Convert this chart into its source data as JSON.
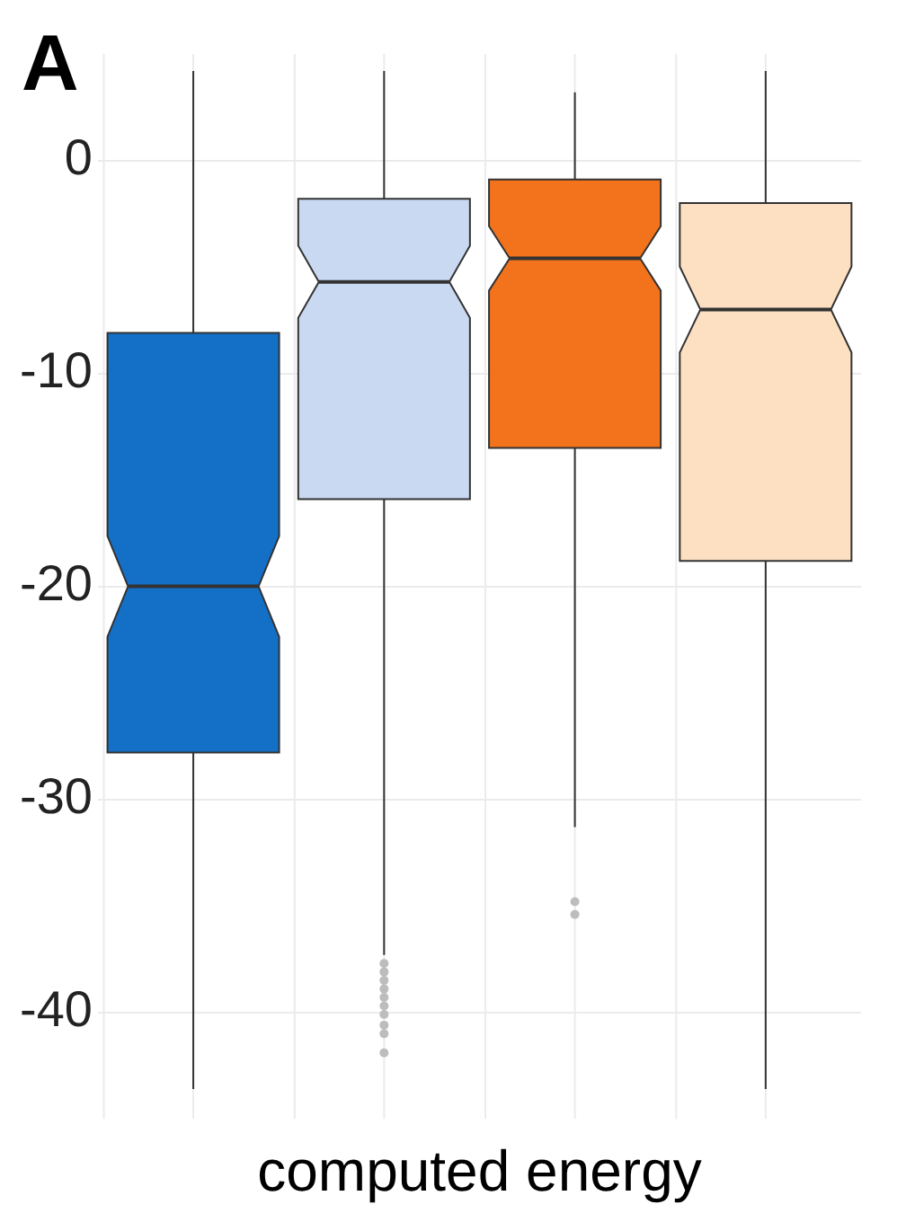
{
  "chart_data": {
    "type": "box",
    "annotations": [
      "A"
    ],
    "xlabel": "computed energy",
    "categories": [
      null,
      null,
      null,
      null
    ],
    "ylim": [
      -45,
      5
    ],
    "yticks": [
      0,
      -10,
      -20,
      -30,
      -40
    ],
    "grid": true,
    "tick_labels": "y",
    "colors": [
      "#1470c7",
      "#c9d9f1",
      "#f2731c",
      "#fde0c2"
    ],
    "boxes": [
      {
        "low": -43.6,
        "q1": -27.8,
        "median": -20,
        "q3": -8.1,
        "high": 4.2
      },
      {
        "low": -37.3,
        "q1": -15.9,
        "median": -5.7,
        "q3": -1.8,
        "high": 4.2,
        "outliers": [
          -37.7,
          -38.1,
          -38.5,
          -38.9,
          -39.3,
          -39.7,
          -40.1,
          -40.6,
          -41.0,
          -41.9
        ]
      },
      {
        "low": -31.3,
        "q1": -13.5,
        "median": -4.6,
        "q3": -0.9,
        "high": 3.2,
        "outliers": [
          -34.8,
          -35.4
        ]
      },
      {
        "low": -43.6,
        "q1": -18.8,
        "median": -7,
        "q3": -2,
        "high": 4.2
      }
    ]
  }
}
